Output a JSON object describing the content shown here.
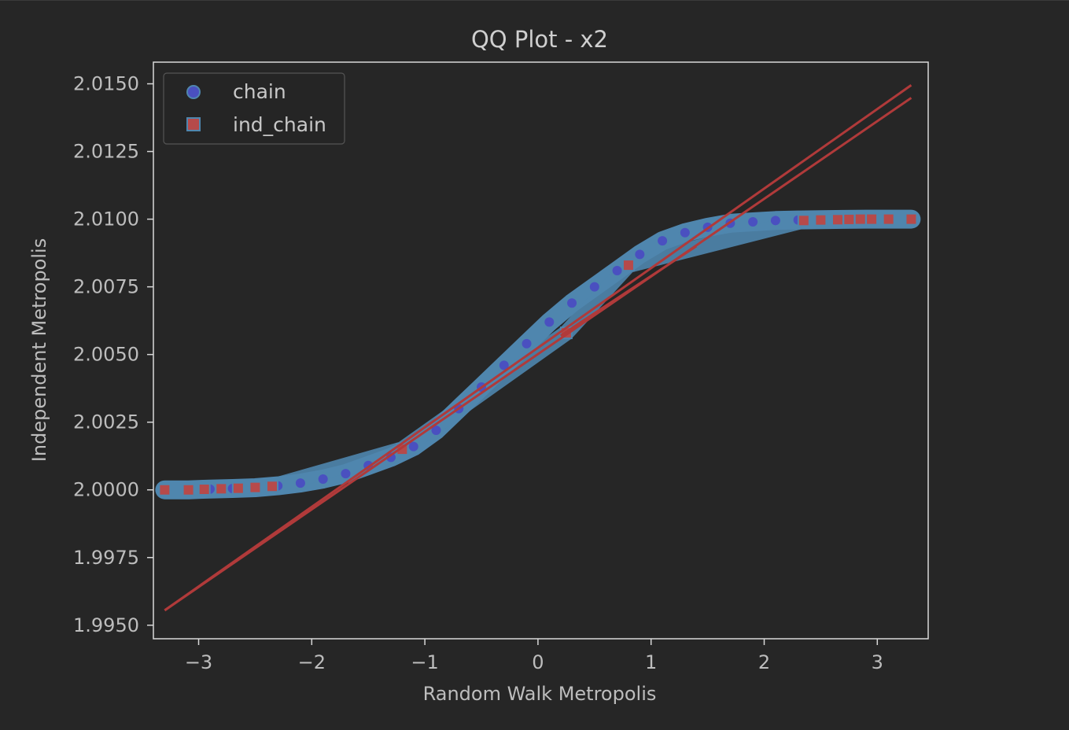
{
  "chart_data": {
    "type": "scatter",
    "title": "QQ Plot - x2",
    "xlabel": "Random Walk Metropolis",
    "ylabel": "Independent Metropolis",
    "xlim": [
      -3.4,
      3.45
    ],
    "ylim": [
      1.9945,
      2.0158
    ],
    "xticks": [
      -3,
      -2,
      -1,
      0,
      1,
      2,
      3
    ],
    "xtick_labels": [
      "−3",
      "−2",
      "−1",
      "0",
      "1",
      "2",
      "3"
    ],
    "yticks": [
      1.995,
      1.9975,
      2.0,
      2.0025,
      2.005,
      2.0075,
      2.01,
      2.0125,
      2.015
    ],
    "ytick_labels": [
      "1.9950",
      "1.9975",
      "2.0000",
      "2.0025",
      "2.0050",
      "2.0075",
      "2.0100",
      "2.0125",
      "2.0150"
    ],
    "grid": false,
    "legend_position": "upper-left",
    "colors": {
      "background": "#262626",
      "axes_edge": "#d8d8d8",
      "text": "#bdbdbd",
      "chain_marker": "#4a50c0",
      "ind_chain_marker": "#b64a4a",
      "scatter_fill": "#4f86ae",
      "line": "#b03a3a"
    },
    "series": [
      {
        "name": "chain",
        "marker": "circle",
        "points": [
          [
            -3.3,
            2.0
          ],
          [
            -3.09,
            2.0
          ],
          [
            -2.9,
            2.00003
          ],
          [
            -2.7,
            2.00005
          ],
          [
            -2.5,
            2.00008
          ],
          [
            -2.3,
            2.00015
          ],
          [
            -2.1,
            2.00025
          ],
          [
            -1.9,
            2.0004
          ],
          [
            -1.7,
            2.0006
          ],
          [
            -1.5,
            2.0009
          ],
          [
            -1.3,
            2.0012
          ],
          [
            -1.1,
            2.0016
          ],
          [
            -0.9,
            2.0022
          ],
          [
            -0.7,
            2.003
          ],
          [
            -0.5,
            2.0038
          ],
          [
            -0.3,
            2.0046
          ],
          [
            -0.1,
            2.0054
          ],
          [
            0.1,
            2.0062
          ],
          [
            0.3,
            2.0069
          ],
          [
            0.5,
            2.0075
          ],
          [
            0.7,
            2.0081
          ],
          [
            0.9,
            2.0087
          ],
          [
            1.1,
            2.0092
          ],
          [
            1.3,
            2.0095
          ],
          [
            1.5,
            2.0097
          ],
          [
            1.7,
            2.00985
          ],
          [
            1.9,
            2.0099
          ],
          [
            2.1,
            2.00995
          ],
          [
            2.3,
            2.00997
          ],
          [
            2.5,
            2.00998
          ],
          [
            2.7,
            2.00999
          ],
          [
            2.9,
            2.01
          ],
          [
            3.1,
            2.01
          ],
          [
            3.3,
            2.01
          ]
        ]
      },
      {
        "name": "ind_chain",
        "marker": "square",
        "points": [
          [
            -3.3,
            2.0
          ],
          [
            -3.09,
            2.0
          ],
          [
            -2.95,
            2.00002
          ],
          [
            -2.8,
            2.00004
          ],
          [
            -2.65,
            2.00006
          ],
          [
            -2.5,
            2.00009
          ],
          [
            -2.35,
            2.00013
          ],
          [
            -1.2,
            2.0015
          ],
          [
            0.25,
            2.0058
          ],
          [
            0.8,
            2.0083
          ],
          [
            2.35,
            2.00995
          ],
          [
            2.5,
            2.00997
          ],
          [
            2.65,
            2.00998
          ],
          [
            2.75,
            2.00999
          ],
          [
            2.85,
            2.01
          ],
          [
            2.95,
            2.01
          ],
          [
            3.1,
            2.01
          ],
          [
            3.3,
            2.01
          ]
        ]
      }
    ],
    "reference_lines": [
      {
        "x": [
          -3.3,
          3.3
        ],
        "y": [
          1.99555,
          2.01495
        ]
      },
      {
        "x": [
          -3.3,
          3.3
        ],
        "y": [
          1.99555,
          2.01448
        ]
      },
      {
        "x": [
          0.2,
          1.4
        ],
        "y": [
          2.0057,
          2.009
        ]
      }
    ]
  }
}
